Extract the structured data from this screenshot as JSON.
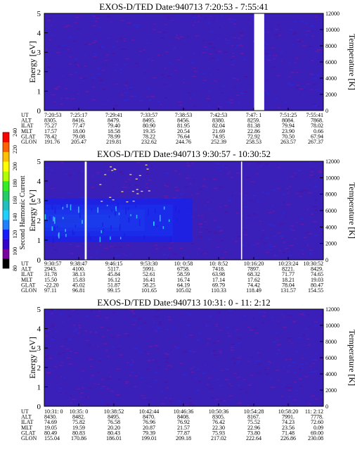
{
  "colorbar": {
    "title": "Second Harmonic Current",
    "ticks": [
      "80",
      "100",
      "120",
      "140",
      "160",
      "180",
      "200",
      "220",
      "240"
    ],
    "colors": [
      "#000000",
      "#7a00a0",
      "#3300cc",
      "#1a1aff",
      "#1f7fff",
      "#1fd0ff",
      "#20c0c0",
      "#22cc66",
      "#33ee22",
      "#b0ff00",
      "#ffff00",
      "#ffc000",
      "#ff6000",
      "#ff0000"
    ]
  },
  "row_labels": [
    "UT",
    "ALT",
    "ILAT",
    "MLT",
    "GLAT",
    "GLON"
  ],
  "chart_data": [
    {
      "type": "heatmap",
      "title": "EXOS-D/TED   Date:940713  7:20:53 - 7:55:41",
      "ylabel": "Energy [eV]",
      "y2label": "Temperature [K]",
      "ylim": [
        0,
        5
      ],
      "y2lim": [
        0,
        12000
      ],
      "yticks": [
        "0",
        "1",
        "2",
        "3",
        "4",
        "5"
      ],
      "y2ticks": [
        "0",
        "2000",
        "4000",
        "6000",
        "8000",
        "10000",
        "12000"
      ],
      "background": "#3a1fb8",
      "gaps": [
        [
          0.752,
          0.788
        ]
      ],
      "blobs": [],
      "ephemeris": [
        [
          "7:20:53",
          "8305.",
          "75.27",
          "17.57",
          "78.42",
          "191.76"
        ],
        [
          "7:25:17",
          "8416.",
          "77.47",
          "18.00",
          "79.08",
          "205.47"
        ],
        [
          "7:29:41",
          "8479.",
          "79.40",
          "18.58",
          "78.99",
          "219.81"
        ],
        [
          "7:33:57",
          "8495.",
          "80.90",
          "19.35",
          "78.22",
          "232.62"
        ],
        [
          "7:38:53",
          "8456.",
          "81.95",
          "20.54",
          "76.64",
          "244.76"
        ],
        [
          "7:42:53",
          "8380.",
          "82.04",
          "21.69",
          "74.95",
          "252.39"
        ],
        [
          "7:47: 1",
          "8259.",
          "81.38",
          "22.86",
          "72.92",
          "258.53"
        ],
        [
          "7:51:25",
          "8084.",
          "79.94",
          "23.90",
          "70.50",
          "263.57"
        ],
        [
          "7:55:41",
          "7868.",
          "78.02",
          "0.66",
          "67.94",
          "267.37"
        ]
      ]
    },
    {
      "type": "heatmap",
      "title": "EXOS-D/TED   Date:940713   9:30:57 - 10:30:52",
      "ylabel": "Energy [eV]",
      "y2label": "Temperature [K]",
      "ylim": [
        0,
        5
      ],
      "y2lim": [
        0,
        12000
      ],
      "yticks": [
        "0",
        "1",
        "2",
        "3",
        "4",
        "5"
      ],
      "y2ticks": [
        "0",
        "2000",
        "4000",
        "6000",
        "8000",
        "10000",
        "12000"
      ],
      "background": "#3a1fb8",
      "gaps": [
        [
          0.145,
          0.152
        ],
        [
          0.705,
          0.709
        ]
      ],
      "blobs": [
        {
          "x0": 0.0,
          "x1": 0.46,
          "ymin": 1.2,
          "ymax": 2.8,
          "color": "#1f6fff"
        },
        {
          "x0": 0.0,
          "x1": 0.36,
          "ymin": 1.45,
          "ymax": 2.55,
          "color": "#1fa0ff"
        },
        {
          "x0": 0.0,
          "x1": 0.27,
          "ymin": 1.65,
          "ymax": 2.3,
          "color": "#1fd0ff"
        },
        {
          "x0": 0.0,
          "x1": 0.12,
          "ymin": 1.85,
          "ymax": 2.1,
          "color": "#20c8c8"
        },
        {
          "x0": 0.0,
          "x1": 0.53,
          "ymin": 0.9,
          "ymax": 3.1,
          "color": "#1a22e8"
        }
      ],
      "ephemeris": [
        [
          "9:30:57",
          "2943.",
          "31.78",
          "15.50",
          "-22.20",
          "97.11"
        ],
        [
          "9:38:47",
          "4100.",
          "38.13",
          "15.83",
          "45.02",
          "96.81"
        ],
        [
          "9:46:15",
          "5117.",
          "45.84",
          "16.12",
          "51.87",
          "99.15"
        ],
        [
          "9:53:30",
          "5991.",
          "52.61",
          "16.41",
          "58.25",
          "101.65"
        ],
        [
          "10: 0:58",
          "6758.",
          "58.59",
          "16.74",
          "64.19",
          "105.02"
        ],
        [
          "10: 8:52",
          "7418.",
          "63.98",
          "17.14",
          "69.79",
          "110.33"
        ],
        [
          "10:16:20",
          "7897.",
          "68.32",
          "17.62",
          "74.42",
          "118.49"
        ],
        [
          "10:23:24",
          "8221.",
          "71.77",
          "18.21",
          "78.04",
          "131.57"
        ],
        [
          "10:30:52",
          "8429.",
          "74.65",
          "19.03",
          "80.47",
          "154.55"
        ]
      ]
    },
    {
      "type": "heatmap",
      "title": "EXOS-D/TED   Date:940713  10:31: 0 - 11: 2:12",
      "ylabel": "Energy [eV]",
      "y2label": "Temperature [K]",
      "ylim": [
        0,
        5
      ],
      "y2lim": [
        0,
        12000
      ],
      "yticks": [
        "0",
        "1",
        "2",
        "3",
        "4",
        "5"
      ],
      "y2ticks": [
        "0",
        "2000",
        "4000",
        "6000",
        "8000",
        "10000",
        "12000"
      ],
      "background": "#3a1fb8",
      "gaps": [],
      "blobs": [],
      "ephemeris": [
        [
          "10:31: 0",
          "8430.",
          "74.69",
          "19.05",
          "80.49",
          "155.04"
        ],
        [
          "10:35: 0",
          "8482.",
          "75.82",
          "19.59",
          "80.83",
          "170.86"
        ],
        [
          "10:38:52",
          "8495.",
          "76.58",
          "20.20",
          "80.43",
          "186.01"
        ],
        [
          "10:42:44",
          "8470.",
          "76.96",
          "20.87",
          "79.39",
          "199.01"
        ],
        [
          "10:46:36",
          "8408.",
          "76.92",
          "21.57",
          "77.87",
          "209.18"
        ],
        [
          "10:50:36",
          "8305.",
          "76.42",
          "22.30",
          "75.93",
          "217.02"
        ],
        [
          "10:54:28",
          "8167.",
          "75.52",
          "22.96",
          "73.80",
          "222.64"
        ],
        [
          "10:58:20",
          "7991.",
          "74.23",
          "23.56",
          "71.48",
          "226.86"
        ],
        [
          "11: 2:12",
          "7778.",
          "72.60",
          "0.09",
          "69.00",
          "230.08"
        ]
      ]
    }
  ]
}
